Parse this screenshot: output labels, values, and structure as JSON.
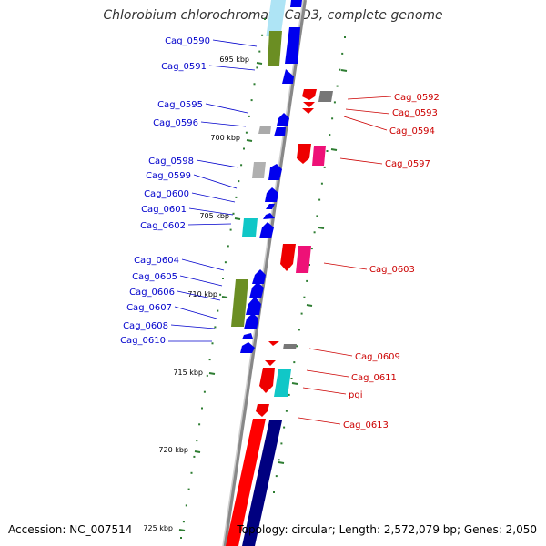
{
  "title": "Chlorobium chlorochromatii CaD3, complete genome",
  "accession": "Accession: NC_007514",
  "topology": "Topology: circular; Length: 2,572,079 bp; Genes: 2,050",
  "colors": {
    "forward_label": "#0000cc",
    "reverse_label": "#cc0000",
    "backbone": "#888888",
    "tick": "#2e7d32"
  },
  "scale_labels": [
    "695 kbp",
    "700 kbp",
    "705 kbp",
    "710 kbp",
    "715 kbp",
    "720 kbp",
    "725 kbp"
  ],
  "forward_genes": [
    "Cag_0590",
    "Cag_0591",
    "Cag_0595",
    "Cag_0596",
    "Cag_0598",
    "Cag_0599",
    "Cag_0600",
    "Cag_0601",
    "Cag_0602",
    "Cag_0604",
    "Cag_0605",
    "Cag_0606",
    "Cag_0607",
    "Cag_0608",
    "Cag_0610"
  ],
  "reverse_genes": [
    "Cag_0592",
    "Cag_0593",
    "Cag_0594",
    "Cag_0597",
    "Cag_0603",
    "Cag_0609",
    "Cag_0611",
    "pgi",
    "Cag_0613"
  ]
}
